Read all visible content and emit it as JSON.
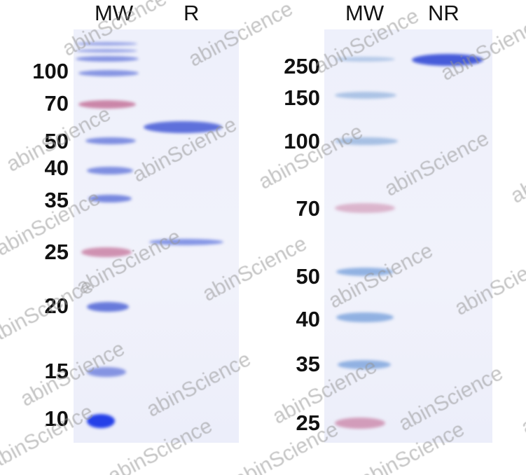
{
  "left_gel": {
    "lanes": [
      "MW",
      "R"
    ],
    "markers": [
      "100",
      "70",
      "50",
      "40",
      "35",
      "25",
      "20",
      "15",
      "10"
    ]
  },
  "right_gel": {
    "lanes": [
      "MW",
      "NR"
    ],
    "markers": [
      "250",
      "150",
      "100",
      "70",
      "50",
      "40",
      "35",
      "25"
    ]
  },
  "watermark": "abinScience",
  "colors": {
    "band_blue": "#4f63d8",
    "marker_pink": "#c77a9f",
    "gel_bg": "#eef0fb"
  }
}
